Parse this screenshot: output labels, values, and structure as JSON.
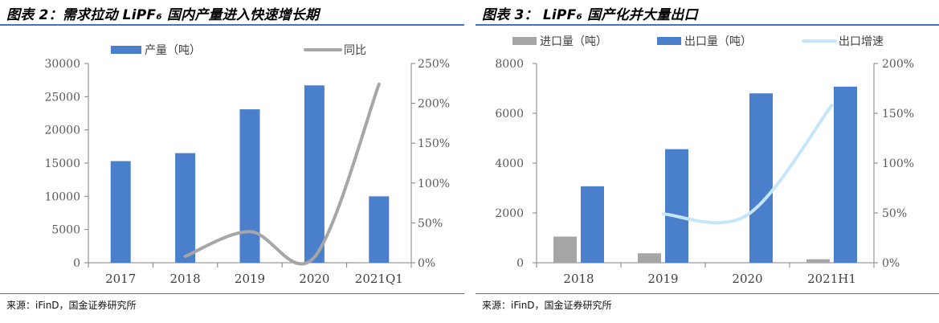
{
  "figures": [
    {
      "title": "图表 2：需求拉动 LiPF₆ 国内产量进入快速增长期",
      "source": "来源：iFinD，国金证券研究所"
    },
    {
      "title": "图表 3：  LiPF₆ 国产化并大量出口",
      "source": "来源：iFinD，国金证券研究所"
    }
  ],
  "chart_data": [
    {
      "type": "bar",
      "categories": [
        "2017",
        "2018",
        "2019",
        "2020",
        "2021Q1"
      ],
      "series": [
        {
          "name": "产量（吨）",
          "kind": "bar",
          "axis": "left",
          "color": "#4a7fcc",
          "values": [
            15300,
            16500,
            23100,
            26700,
            10000
          ]
        },
        {
          "name": "同比",
          "kind": "line",
          "axis": "right",
          "smooth": true,
          "color": "#a6a6a6",
          "values": [
            null,
            8,
            39,
            7,
            224
          ]
        }
      ],
      "y_left": {
        "min": 0,
        "max": 30000,
        "ticks": [
          0,
          5000,
          10000,
          15000,
          20000,
          25000,
          30000
        ]
      },
      "y_right": {
        "min": 0,
        "max": 250,
        "unit": "%",
        "ticks": [
          "0%",
          "50%",
          "100%",
          "150%",
          "200%",
          "250%"
        ]
      },
      "legend": "top",
      "grid": false
    },
    {
      "type": "bar",
      "categories": [
        "2018",
        "2019",
        "2020",
        "2021H1"
      ],
      "series": [
        {
          "name": "进口量（吨）",
          "kind": "bar",
          "axis": "left",
          "color": "#a6a6a6",
          "values": [
            1050,
            380,
            0,
            140
          ]
        },
        {
          "name": "出口量（吨）",
          "kind": "bar",
          "axis": "left",
          "color": "#4a7fcc",
          "values": [
            3070,
            4560,
            6800,
            7070
          ]
        },
        {
          "name": "出口增速",
          "kind": "line",
          "axis": "right",
          "smooth": true,
          "color": "#c5e6fa",
          "values": [
            null,
            49,
            48,
            158
          ]
        }
      ],
      "y_left": {
        "min": 0,
        "max": 8000,
        "ticks": [
          0,
          2000,
          4000,
          6000,
          8000
        ]
      },
      "y_right": {
        "min": 0,
        "max": 200,
        "unit": "%",
        "ticks": [
          "0%",
          "50%",
          "100%",
          "150%",
          "200%"
        ]
      },
      "legend": "top",
      "grid": false
    }
  ]
}
